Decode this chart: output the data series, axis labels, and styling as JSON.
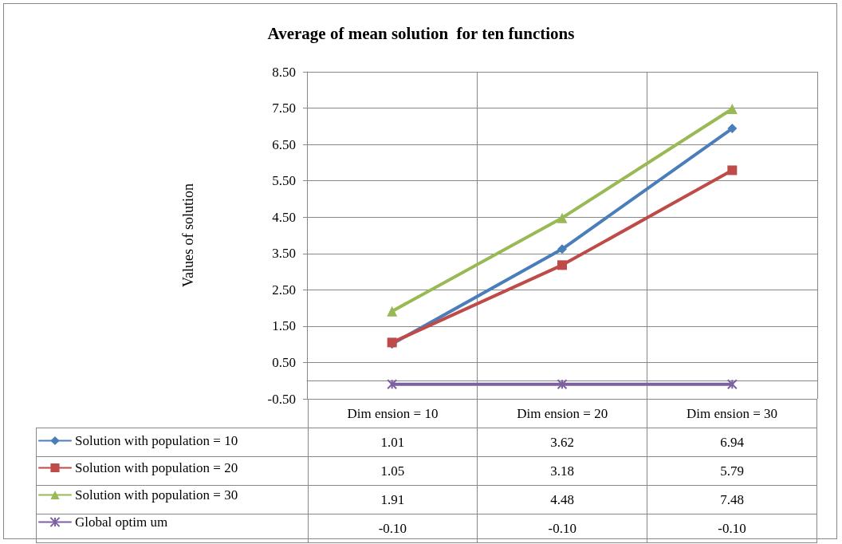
{
  "chart_data": {
    "type": "line",
    "title": "Average of mean solution  for ten functions",
    "ylabel": "Values of solution",
    "categories": [
      "Dim ension = 10",
      "Dim ension = 20",
      "Dim ension = 30"
    ],
    "series": [
      {
        "name": "Solution with population = 10",
        "color": "#4a7ebb",
        "marker": "diamond",
        "values": [
          1.01,
          3.62,
          6.94
        ],
        "value_labels": [
          "1.01",
          "3.62",
          "6.94"
        ]
      },
      {
        "name": "Solution with population = 20",
        "color": "#be4b48",
        "marker": "square",
        "values": [
          1.05,
          3.18,
          5.79
        ],
        "value_labels": [
          "1.05",
          "3.18",
          "5.79"
        ]
      },
      {
        "name": "Solution with population = 30",
        "color": "#98b954",
        "marker": "triangle",
        "values": [
          1.91,
          4.48,
          7.48
        ],
        "value_labels": [
          "1.91",
          "4.48",
          "7.48"
        ]
      },
      {
        "name": "Global optim um",
        "color": "#7d60a0",
        "marker": "cross",
        "values": [
          -0.1,
          -0.1,
          -0.1
        ],
        "value_labels": [
          "-0.10",
          "-0.10",
          "-0.10"
        ]
      }
    ],
    "ylim": [
      -0.5,
      8.5
    ],
    "yticks": [
      {
        "value": -0.5,
        "label": "-0.50"
      },
      {
        "value": 0.5,
        "label": "0.50"
      },
      {
        "value": 1.5,
        "label": "1.50"
      },
      {
        "value": 2.5,
        "label": "2.50"
      },
      {
        "value": 3.5,
        "label": "3.50"
      },
      {
        "value": 4.5,
        "label": "4.50"
      },
      {
        "value": 5.5,
        "label": "5.50"
      },
      {
        "value": 6.5,
        "label": "6.50"
      },
      {
        "value": 7.5,
        "label": "7.50"
      },
      {
        "value": 8.5,
        "label": "8.50"
      }
    ],
    "grid": true,
    "legend": "bottom left",
    "line_style": "solid"
  }
}
